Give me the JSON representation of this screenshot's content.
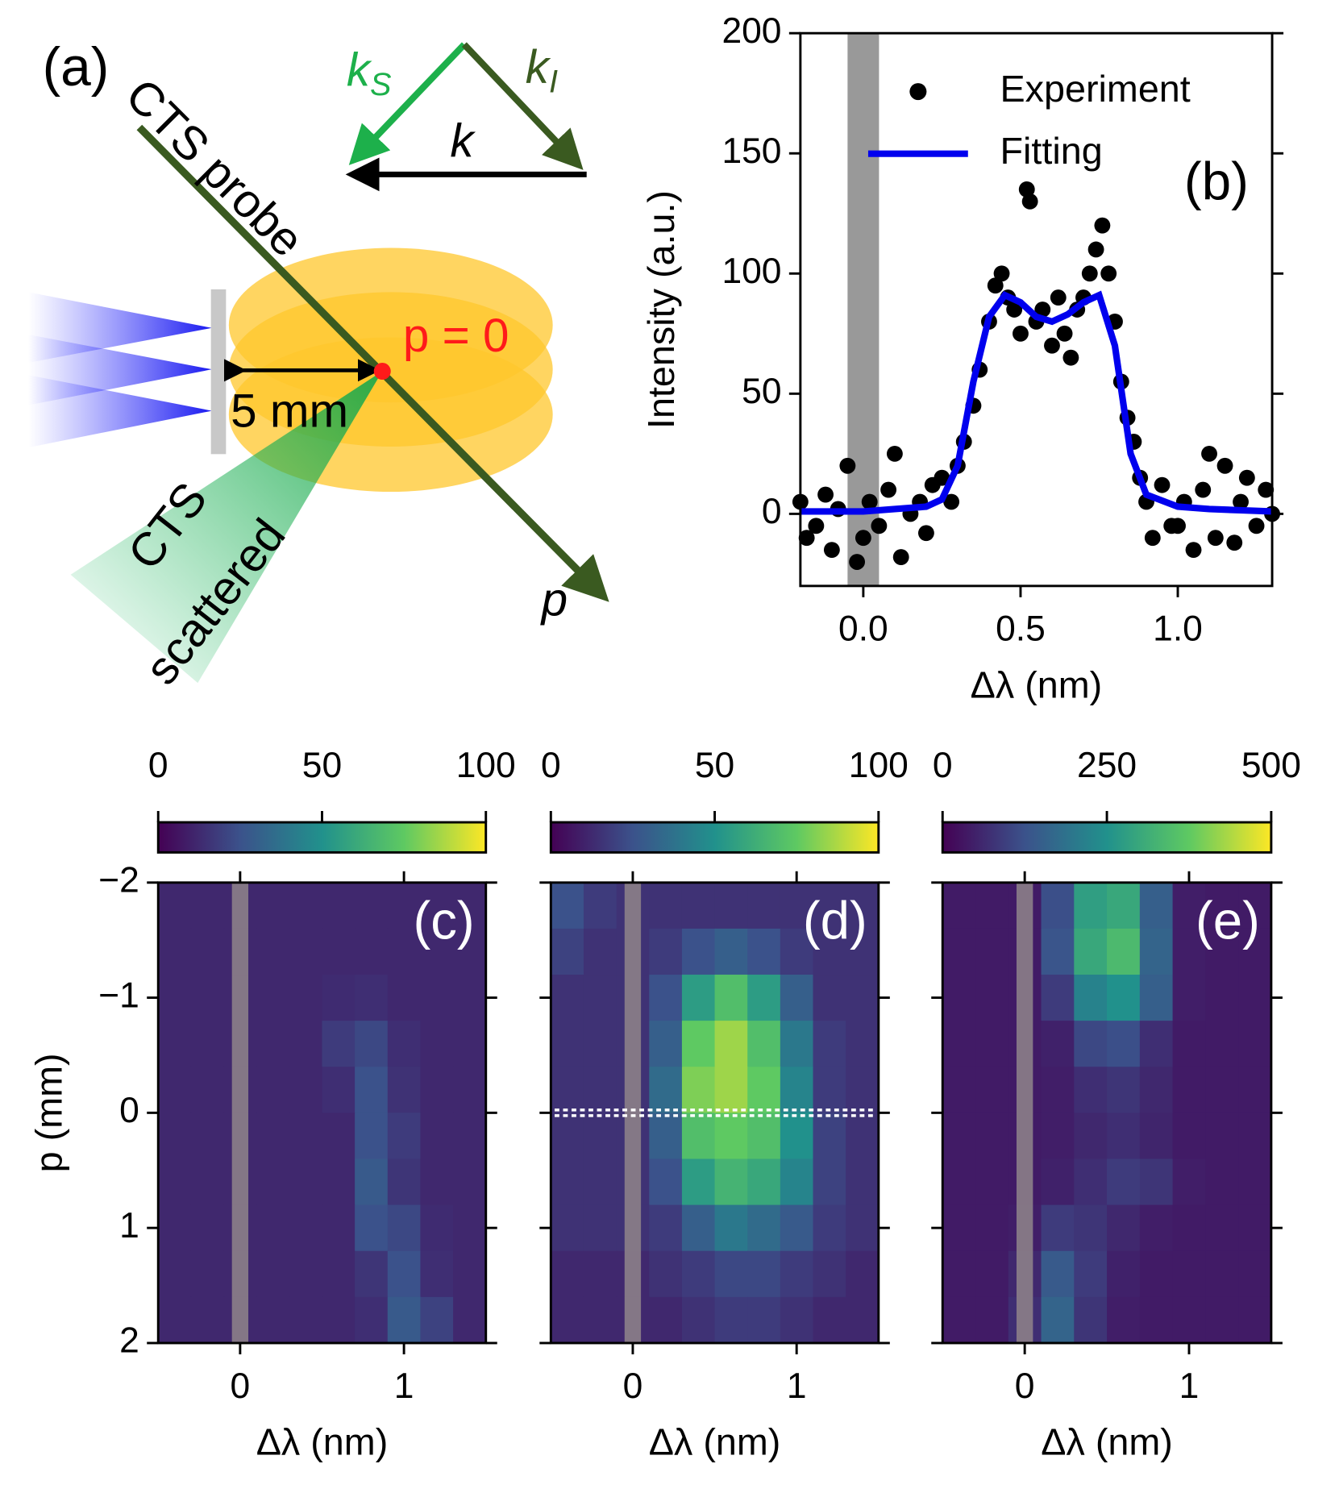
{
  "diagram": {
    "label": "(a)",
    "probe": "CTS probe",
    "k_s": [
      "k",
      "S"
    ],
    "k_i": [
      "k",
      "I"
    ],
    "k": "k",
    "origin": "p = 0",
    "distance": "5 mm",
    "scattered": [
      "CTS",
      "scattered"
    ],
    "axis": "p"
  },
  "chart_data": [
    {
      "type": "scatter",
      "label": "(b)",
      "xlabel": "Δλ (nm)",
      "ylabel": "Intensity (a.u.)",
      "xlim": [
        -0.2,
        1.3
      ],
      "ylim": [
        -30,
        200
      ],
      "xticks": [
        {
          "value": 0,
          "label": "0.0"
        },
        {
          "value": 0.5,
          "label": "0.5"
        },
        {
          "value": 1,
          "label": "1.0"
        }
      ],
      "yticks": [
        0,
        50,
        100,
        150,
        200
      ],
      "shade": [
        -0.05,
        0.05
      ],
      "shade_color": "#999999",
      "legend": "upper right",
      "series": [
        {
          "name": "Experiment",
          "type": "scatter",
          "color": "#000000",
          "x": [
            -0.2,
            -0.18,
            -0.15,
            -0.12,
            -0.1,
            -0.08,
            -0.05,
            -0.02,
            0.0,
            0.02,
            0.05,
            0.08,
            0.1,
            0.12,
            0.15,
            0.18,
            0.2,
            0.22,
            0.25,
            0.28,
            0.3,
            0.32,
            0.35,
            0.37,
            0.4,
            0.42,
            0.44,
            0.46,
            0.48,
            0.5,
            0.52,
            0.53,
            0.55,
            0.57,
            0.6,
            0.62,
            0.64,
            0.66,
            0.68,
            0.7,
            0.72,
            0.74,
            0.76,
            0.78,
            0.8,
            0.82,
            0.84,
            0.86,
            0.88,
            0.9,
            0.92,
            0.95,
            0.98,
            1.0,
            1.02,
            1.05,
            1.08,
            1.1,
            1.12,
            1.15,
            1.18,
            1.2,
            1.22,
            1.25,
            1.28,
            1.3
          ],
          "values": [
            5,
            -10,
            -5,
            8,
            -15,
            2,
            20,
            -20,
            -10,
            5,
            -5,
            10,
            25,
            -18,
            0,
            5,
            -8,
            12,
            15,
            5,
            20,
            30,
            45,
            60,
            80,
            95,
            100,
            90,
            85,
            75,
            135,
            130,
            80,
            85,
            70,
            90,
            75,
            65,
            85,
            90,
            100,
            110,
            120,
            100,
            80,
            55,
            40,
            30,
            15,
            5,
            -10,
            12,
            -5,
            -5,
            5,
            -15,
            10,
            25,
            -10,
            20,
            -12,
            5,
            15,
            -5,
            10,
            0
          ]
        },
        {
          "name": "Fitting",
          "type": "line",
          "color": "#0000ee",
          "x": [
            -0.2,
            -0.1,
            0,
            0.1,
            0.2,
            0.25,
            0.3,
            0.35,
            0.4,
            0.45,
            0.5,
            0.55,
            0.6,
            0.65,
            0.7,
            0.75,
            0.8,
            0.85,
            0.9,
            1.0,
            1.1,
            1.2,
            1.3
          ],
          "values": [
            1,
            1,
            1,
            2,
            3,
            6,
            20,
            55,
            82,
            91,
            88,
            82,
            80,
            83,
            88,
            91,
            70,
            25,
            8,
            3,
            2,
            1.5,
            1
          ]
        }
      ]
    },
    {
      "type": "heatmap",
      "label": "(c)",
      "xlabel": "Δλ (nm)",
      "ylabel": "p (mm)",
      "xlim": [
        -0.5,
        1.5
      ],
      "ylim": [
        2,
        -2
      ],
      "xticks": [
        0,
        1
      ],
      "yticks": [
        {
          "value": -2,
          "label": "−2"
        },
        {
          "value": -1,
          "label": "−1"
        },
        0,
        1,
        2
      ],
      "show_ytick_labels": true,
      "colormap": "viridis",
      "clim": [
        0,
        100
      ],
      "cticks": [
        0,
        50,
        100
      ],
      "shade": [
        -0.05,
        0.05
      ],
      "shade_color": "#8c8088",
      "x": [
        -0.4,
        -0.2,
        0,
        0.2,
        0.4,
        0.6,
        0.8,
        1.0,
        1.2,
        1.4
      ],
      "y": [
        -1.8,
        -1.4,
        -1.0,
        -0.6,
        -0.2,
        0.2,
        0.6,
        1.0,
        1.4,
        1.8
      ],
      "z": [
        [
          12,
          12,
          12,
          12,
          12,
          12,
          12,
          12,
          12,
          12
        ],
        [
          12,
          12,
          12,
          12,
          12,
          12,
          12,
          12,
          12,
          12
        ],
        [
          12,
          12,
          12,
          12,
          12,
          13,
          14,
          12,
          12,
          12
        ],
        [
          12,
          12,
          12,
          12,
          12,
          18,
          22,
          14,
          12,
          12
        ],
        [
          12,
          12,
          12,
          12,
          12,
          14,
          25,
          15,
          12,
          12
        ],
        [
          12,
          12,
          12,
          12,
          12,
          12,
          25,
          18,
          12,
          12
        ],
        [
          12,
          12,
          12,
          12,
          12,
          12,
          28,
          16,
          12,
          12
        ],
        [
          12,
          12,
          12,
          12,
          12,
          12,
          25,
          22,
          13,
          12
        ],
        [
          12,
          12,
          12,
          12,
          12,
          12,
          16,
          25,
          14,
          12
        ],
        [
          12,
          12,
          12,
          12,
          12,
          12,
          14,
          28,
          20,
          12
        ]
      ]
    },
    {
      "type": "heatmap",
      "label": "(d)",
      "xlabel": "Δλ (nm)",
      "xlim": [
        -0.5,
        1.5
      ],
      "ylim": [
        2,
        -2
      ],
      "xticks": [
        0,
        1
      ],
      "yticks": [
        -2,
        -1,
        0,
        1,
        2
      ],
      "show_ytick_labels": false,
      "colormap": "viridis",
      "clim": [
        0,
        100
      ],
      "cticks": [
        0,
        50,
        100
      ],
      "shade": [
        -0.05,
        0.05
      ],
      "shade_color": "#8c8088",
      "hline": 0,
      "x": [
        -0.4,
        -0.2,
        0,
        0.2,
        0.4,
        0.6,
        0.8,
        1.0,
        1.2,
        1.4
      ],
      "y": [
        -1.8,
        -1.4,
        -1.0,
        -0.6,
        -0.2,
        0.2,
        0.6,
        1.0,
        1.4,
        1.8
      ],
      "z": [
        [
          25,
          18,
          15,
          15,
          15,
          15,
          15,
          15,
          15,
          15
        ],
        [
          20,
          15,
          15,
          18,
          25,
          30,
          25,
          18,
          15,
          15
        ],
        [
          15,
          15,
          15,
          25,
          55,
          70,
          55,
          30,
          15,
          15
        ],
        [
          15,
          15,
          15,
          30,
          75,
          85,
          70,
          40,
          18,
          15
        ],
        [
          15,
          15,
          15,
          35,
          80,
          85,
          75,
          45,
          18,
          15
        ],
        [
          15,
          15,
          15,
          30,
          70,
          75,
          70,
          50,
          20,
          15
        ],
        [
          15,
          15,
          15,
          25,
          55,
          65,
          60,
          45,
          20,
          15
        ],
        [
          15,
          15,
          15,
          18,
          30,
          40,
          35,
          28,
          18,
          15
        ],
        [
          12,
          12,
          12,
          15,
          18,
          22,
          22,
          18,
          15,
          12
        ],
        [
          12,
          12,
          12,
          12,
          15,
          18,
          18,
          15,
          12,
          12
        ]
      ]
    },
    {
      "type": "heatmap",
      "label": "(e)",
      "xlabel": "Δλ (nm)",
      "xlim": [
        -0.5,
        1.5
      ],
      "ylim": [
        2,
        -2
      ],
      "xticks": [
        0,
        1
      ],
      "yticks": [
        -2,
        -1,
        0,
        1,
        2
      ],
      "show_ytick_labels": false,
      "colormap": "viridis",
      "clim": [
        0,
        500
      ],
      "cticks": [
        0,
        250,
        500
      ],
      "shade": [
        -0.05,
        0.05
      ],
      "shade_color": "#8c8088",
      "x": [
        -0.4,
        -0.2,
        0,
        0.2,
        0.4,
        0.6,
        0.8,
        1.0,
        1.2,
        1.4
      ],
      "y": [
        -1.8,
        -1.4,
        -1.0,
        -0.6,
        -0.2,
        0.2,
        0.6,
        1.0,
        1.4,
        1.8
      ],
      "z": [
        [
          40,
          40,
          40,
          120,
          280,
          300,
          150,
          45,
          40,
          40
        ],
        [
          40,
          40,
          40,
          130,
          300,
          340,
          160,
          45,
          40,
          40
        ],
        [
          40,
          40,
          40,
          90,
          220,
          250,
          150,
          45,
          40,
          40
        ],
        [
          40,
          40,
          40,
          50,
          110,
          120,
          70,
          40,
          40,
          40
        ],
        [
          40,
          40,
          40,
          45,
          70,
          80,
          60,
          40,
          40,
          40
        ],
        [
          40,
          40,
          40,
          45,
          60,
          70,
          55,
          40,
          40,
          40
        ],
        [
          40,
          40,
          40,
          50,
          70,
          90,
          80,
          45,
          40,
          40
        ],
        [
          40,
          40,
          45,
          90,
          80,
          60,
          45,
          40,
          40,
          40
        ],
        [
          40,
          40,
          60,
          140,
          90,
          50,
          40,
          40,
          40,
          40
        ],
        [
          40,
          40,
          70,
          160,
          80,
          45,
          40,
          40,
          40,
          40
        ]
      ]
    }
  ]
}
